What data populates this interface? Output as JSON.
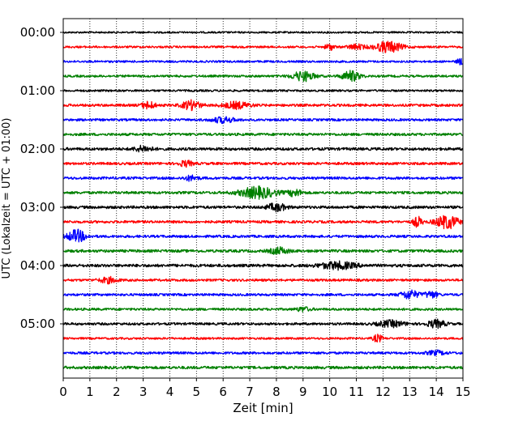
{
  "chart_data": {
    "type": "line",
    "title": "",
    "xlabel": "Zeit  [min]",
    "ylabel": "UTC (Lokalzeit = UTC + 01:00)",
    "xlim": [
      0,
      15
    ],
    "x_ticks": [
      "0",
      "1",
      "2",
      "3",
      "4",
      "5",
      "6",
      "7",
      "8",
      "9",
      "10",
      "11",
      "12",
      "13",
      "14",
      "15"
    ],
    "y_ticks": [
      "00:00",
      "01:00",
      "02:00",
      "03:00",
      "04:00",
      "05:00"
    ],
    "grid": "x-dotted",
    "colors": {
      "black": "#000000",
      "red": "#ff0000",
      "blue": "#0000ff",
      "green": "#008000"
    },
    "color_cycle": [
      "black",
      "red",
      "blue",
      "green"
    ],
    "row_interval_minutes": 15,
    "rows": [
      {
        "start": "00:00",
        "color": "black",
        "level": 0.15,
        "bursts": []
      },
      {
        "start": "00:15",
        "color": "red",
        "level": 0.3,
        "bursts": [
          {
            "t": 10.0,
            "width": 0.2,
            "amp": 0.9
          },
          {
            "t": 11.0,
            "width": 0.4,
            "amp": 0.7
          },
          {
            "t": 12.2,
            "width": 0.6,
            "amp": 1.6
          }
        ]
      },
      {
        "start": "00:30",
        "color": "blue",
        "level": 0.3,
        "bursts": [
          {
            "t": 14.9,
            "width": 0.15,
            "amp": 0.9
          }
        ]
      },
      {
        "start": "00:45",
        "color": "green",
        "level": 0.4,
        "bursts": [
          {
            "t": 9.0,
            "width": 0.5,
            "amp": 1.4
          },
          {
            "t": 10.8,
            "width": 0.4,
            "amp": 1.5
          }
        ]
      },
      {
        "start": "01:00",
        "color": "black",
        "level": 0.3,
        "bursts": []
      },
      {
        "start": "01:15",
        "color": "red",
        "level": 0.6,
        "bursts": [
          {
            "t": 3.2,
            "width": 0.3,
            "amp": 1.0
          },
          {
            "t": 4.8,
            "width": 0.4,
            "amp": 1.3
          },
          {
            "t": 6.5,
            "width": 0.6,
            "amp": 0.9
          }
        ]
      },
      {
        "start": "01:30",
        "color": "blue",
        "level": 0.5,
        "bursts": [
          {
            "t": 6.0,
            "width": 0.5,
            "amp": 0.8
          }
        ]
      },
      {
        "start": "01:45",
        "color": "green",
        "level": 0.6,
        "bursts": []
      },
      {
        "start": "02:00",
        "color": "black",
        "level": 0.7,
        "bursts": [
          {
            "t": 3.0,
            "width": 0.4,
            "amp": 0.8
          }
        ]
      },
      {
        "start": "02:15",
        "color": "red",
        "level": 0.6,
        "bursts": [
          {
            "t": 4.6,
            "width": 0.3,
            "amp": 0.8
          }
        ]
      },
      {
        "start": "02:30",
        "color": "blue",
        "level": 0.6,
        "bursts": [
          {
            "t": 4.8,
            "width": 0.3,
            "amp": 0.7
          }
        ]
      },
      {
        "start": "02:45",
        "color": "green",
        "level": 0.6,
        "bursts": [
          {
            "t": 7.3,
            "width": 0.8,
            "amp": 1.6
          },
          {
            "t": 8.7,
            "width": 0.3,
            "amp": 1.0
          }
        ]
      },
      {
        "start": "03:00",
        "color": "black",
        "level": 0.7,
        "bursts": [
          {
            "t": 8.0,
            "width": 0.4,
            "amp": 1.1
          }
        ]
      },
      {
        "start": "03:15",
        "color": "red",
        "level": 0.6,
        "bursts": [
          {
            "t": 13.3,
            "width": 0.2,
            "amp": 1.4
          },
          {
            "t": 14.4,
            "width": 0.5,
            "amp": 1.9
          }
        ]
      },
      {
        "start": "03:30",
        "color": "blue",
        "level": 0.6,
        "bursts": [
          {
            "t": 0.5,
            "width": 0.4,
            "amp": 1.8
          }
        ]
      },
      {
        "start": "03:45",
        "color": "green",
        "level": 0.7,
        "bursts": [
          {
            "t": 8.1,
            "width": 0.4,
            "amp": 0.9
          }
        ]
      },
      {
        "start": "04:00",
        "color": "black",
        "level": 0.8,
        "bursts": [
          {
            "t": 10.3,
            "width": 0.8,
            "amp": 1.0
          }
        ]
      },
      {
        "start": "04:15",
        "color": "red",
        "level": 0.5,
        "bursts": [
          {
            "t": 1.7,
            "width": 0.4,
            "amp": 0.8
          }
        ]
      },
      {
        "start": "04:30",
        "color": "blue",
        "level": 0.5,
        "bursts": [
          {
            "t": 13.0,
            "width": 0.4,
            "amp": 1.2
          },
          {
            "t": 13.8,
            "width": 0.3,
            "amp": 0.9
          }
        ]
      },
      {
        "start": "04:45",
        "color": "green",
        "level": 0.5,
        "bursts": [
          {
            "t": 9.0,
            "width": 0.3,
            "amp": 0.6
          }
        ]
      },
      {
        "start": "05:00",
        "color": "black",
        "level": 0.5,
        "bursts": [
          {
            "t": 12.3,
            "width": 0.6,
            "amp": 0.9
          },
          {
            "t": 14.0,
            "width": 0.4,
            "amp": 1.1
          }
        ]
      },
      {
        "start": "05:15",
        "color": "red",
        "level": 0.3,
        "bursts": [
          {
            "t": 11.8,
            "width": 0.2,
            "amp": 1.1
          }
        ]
      },
      {
        "start": "05:30",
        "color": "blue",
        "level": 0.5,
        "bursts": [
          {
            "t": 14.0,
            "width": 0.4,
            "amp": 0.6
          }
        ]
      },
      {
        "start": "05:45",
        "color": "green",
        "level": 0.7,
        "bursts": []
      }
    ]
  }
}
